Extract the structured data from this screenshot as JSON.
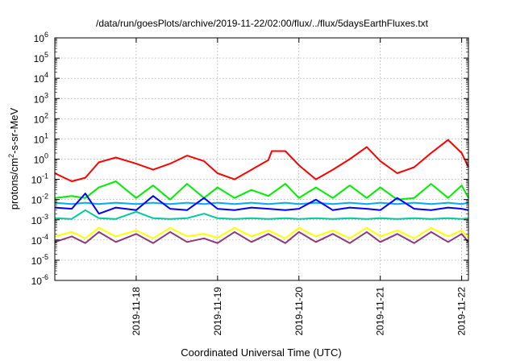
{
  "chart_data": {
    "type": "line",
    "title": "/data/run/goesPlots/archive/2019-11-22/02:00/flux/../flux/5daysEarthFluxes.txt",
    "xlabel": "Coordinated Universal Time (UTC)",
    "ylabel": {
      "base": "protons/cm",
      "sup": "2",
      "rest": "-s-sr-MeV"
    },
    "yscale": "log",
    "ylim": [
      1e-06,
      1000000.0
    ],
    "xlim": [
      "2019-11-17 00:00",
      "2019-11-22 02:00"
    ],
    "grid": true,
    "x_ticks": [
      "2019-11-18",
      "2019-11-19",
      "2019-11-20",
      "2019-11-21",
      "2019-11-22"
    ],
    "y_ticks": [
      {
        "value": 1000000.0,
        "base": "10",
        "exp": "6"
      },
      {
        "value": 100000.0,
        "base": "10",
        "exp": "5"
      },
      {
        "value": 10000.0,
        "base": "10",
        "exp": "4"
      },
      {
        "value": 1000.0,
        "base": "10",
        "exp": "3"
      },
      {
        "value": 100.0,
        "base": "10",
        "exp": "2"
      },
      {
        "value": 10.0,
        "base": "10",
        "exp": "1"
      },
      {
        "value": 1.0,
        "base": "10",
        "exp": "0"
      },
      {
        "value": 0.1,
        "base": "10",
        "exp": "-1"
      },
      {
        "value": 0.01,
        "base": "10",
        "exp": "-2"
      },
      {
        "value": 0.001,
        "base": "10",
        "exp": "-3"
      },
      {
        "value": 0.0001,
        "base": "10",
        "exp": "-4"
      },
      {
        "value": 1e-05,
        "base": "10",
        "exp": "-5"
      },
      {
        "value": 1e-06,
        "base": "10",
        "exp": "-6"
      }
    ],
    "series": [
      {
        "color": "#ff0000",
        "x": [
          "2019-11-17 00:00",
          "2019-11-17 05:00",
          "2019-11-17 09:00",
          "2019-11-17 13:00",
          "2019-11-17 18:00",
          "2019-11-18 00:00",
          "2019-11-18 05:00",
          "2019-11-18 10:00",
          "2019-11-18 15:00",
          "2019-11-18 20:00",
          "2019-11-19 00:00",
          "2019-11-19 05:00",
          "2019-11-19 10:00",
          "2019-11-19 15:00",
          "2019-11-19 16:00",
          "2019-11-19 20:00",
          "2019-11-20 00:00",
          "2019-11-20 05:00",
          "2019-11-20 10:00",
          "2019-11-20 15:00",
          "2019-11-20 20:00",
          "2019-11-21 00:00",
          "2019-11-21 05:00",
          "2019-11-21 10:00",
          "2019-11-21 15:00",
          "2019-11-21 20:00",
          "2019-11-22 00:00",
          "2019-11-22 02:00"
        ],
        "values": [
          0.2,
          0.08,
          0.12,
          0.7,
          1.2,
          0.6,
          0.3,
          0.6,
          1.5,
          0.8,
          0.2,
          0.1,
          0.3,
          0.9,
          2.5,
          2.5,
          0.5,
          0.1,
          0.3,
          1.0,
          4.0,
          0.8,
          0.2,
          0.4,
          2.0,
          9.0,
          2.0,
          0.4
        ]
      },
      {
        "color": "#00ee00",
        "x": [
          "2019-11-17 00:00",
          "2019-11-17 05:00",
          "2019-11-17 09:00",
          "2019-11-17 13:00",
          "2019-11-17 18:00",
          "2019-11-18 00:00",
          "2019-11-18 05:00",
          "2019-11-18 10:00",
          "2019-11-18 15:00",
          "2019-11-18 20:00",
          "2019-11-19 00:00",
          "2019-11-19 05:00",
          "2019-11-19 10:00",
          "2019-11-19 15:00",
          "2019-11-19 20:00",
          "2019-11-20 00:00",
          "2019-11-20 05:00",
          "2019-11-20 10:00",
          "2019-11-20 15:00",
          "2019-11-20 20:00",
          "2019-11-21 00:00",
          "2019-11-21 05:00",
          "2019-11-21 10:00",
          "2019-11-21 15:00",
          "2019-11-21 20:00",
          "2019-11-22 00:00",
          "2019-11-22 02:00"
        ],
        "values": [
          0.012,
          0.015,
          0.012,
          0.04,
          0.08,
          0.012,
          0.05,
          0.01,
          0.06,
          0.012,
          0.04,
          0.012,
          0.03,
          0.015,
          0.06,
          0.012,
          0.04,
          0.012,
          0.05,
          0.012,
          0.04,
          0.01,
          0.012,
          0.06,
          0.012,
          0.05,
          0.012
        ]
      },
      {
        "color": "#00aaff",
        "x": [
          "2019-11-17 00:00",
          "2019-11-17 05:00",
          "2019-11-17 09:00",
          "2019-11-17 13:00",
          "2019-11-17 18:00",
          "2019-11-18 00:00",
          "2019-11-18 05:00",
          "2019-11-18 10:00",
          "2019-11-18 15:00",
          "2019-11-18 20:00",
          "2019-11-19 00:00",
          "2019-11-19 05:00",
          "2019-11-19 10:00",
          "2019-11-19 15:00",
          "2019-11-19 20:00",
          "2019-11-20 00:00",
          "2019-11-20 05:00",
          "2019-11-20 10:00",
          "2019-11-20 15:00",
          "2019-11-20 20:00",
          "2019-11-21 00:00",
          "2019-11-21 05:00",
          "2019-11-21 10:00",
          "2019-11-21 15:00",
          "2019-11-21 20:00",
          "2019-11-22 00:00",
          "2019-11-22 02:00"
        ],
        "values": [
          0.007,
          0.006,
          0.007,
          0.006,
          0.007,
          0.006,
          0.007,
          0.006,
          0.007,
          0.006,
          0.007,
          0.006,
          0.007,
          0.006,
          0.007,
          0.006,
          0.007,
          0.006,
          0.007,
          0.006,
          0.007,
          0.006,
          0.007,
          0.006,
          0.007,
          0.006,
          0.007
        ]
      },
      {
        "color": "#0000ff",
        "x": [
          "2019-11-17 00:00",
          "2019-11-17 05:00",
          "2019-11-17 09:00",
          "2019-11-17 13:00",
          "2019-11-17 18:00",
          "2019-11-18 00:00",
          "2019-11-18 05:00",
          "2019-11-18 10:00",
          "2019-11-18 15:00",
          "2019-11-18 20:00",
          "2019-11-19 00:00",
          "2019-11-19 05:00",
          "2019-11-19 10:00",
          "2019-11-19 15:00",
          "2019-11-19 20:00",
          "2019-11-20 00:00",
          "2019-11-20 05:00",
          "2019-11-20 10:00",
          "2019-11-20 15:00",
          "2019-11-20 20:00",
          "2019-11-21 00:00",
          "2019-11-21 05:00",
          "2019-11-21 10:00",
          "2019-11-21 15:00",
          "2019-11-21 20:00",
          "2019-11-22 00:00",
          "2019-11-22 02:00"
        ],
        "values": [
          0.004,
          0.0035,
          0.02,
          0.002,
          0.004,
          0.003,
          0.015,
          0.0035,
          0.003,
          0.012,
          0.0035,
          0.003,
          0.004,
          0.0035,
          0.003,
          0.0035,
          0.01,
          0.003,
          0.004,
          0.0035,
          0.003,
          0.012,
          0.0035,
          0.003,
          0.004,
          0.0035,
          0.003
        ]
      },
      {
        "color": "#00c8a0",
        "x": [
          "2019-11-17 00:00",
          "2019-11-17 05:00",
          "2019-11-17 09:00",
          "2019-11-17 13:00",
          "2019-11-17 18:00",
          "2019-11-18 00:00",
          "2019-11-18 05:00",
          "2019-11-18 10:00",
          "2019-11-18 15:00",
          "2019-11-18 20:00",
          "2019-11-19 00:00",
          "2019-11-19 05:00",
          "2019-11-19 10:00",
          "2019-11-19 15:00",
          "2019-11-19 20:00",
          "2019-11-20 00:00",
          "2019-11-20 05:00",
          "2019-11-20 10:00",
          "2019-11-20 15:00",
          "2019-11-20 20:00",
          "2019-11-21 00:00",
          "2019-11-21 05:00",
          "2019-11-21 10:00",
          "2019-11-21 15:00",
          "2019-11-21 20:00",
          "2019-11-22 00:00",
          "2019-11-22 02:00"
        ],
        "values": [
          0.0012,
          0.0011,
          0.003,
          0.0012,
          0.0011,
          0.0025,
          0.0012,
          0.0011,
          0.0012,
          0.002,
          0.0012,
          0.0011,
          0.0012,
          0.0011,
          0.0012,
          0.0011,
          0.0012,
          0.0011,
          0.0012,
          0.0011,
          0.0012,
          0.0011,
          0.0012,
          0.0011,
          0.0012,
          0.0011,
          0.0012
        ]
      },
      {
        "color": "#ffff00",
        "x": [
          "2019-11-17 00:00",
          "2019-11-17 05:00",
          "2019-11-17 09:00",
          "2019-11-17 13:00",
          "2019-11-17 18:00",
          "2019-11-18 00:00",
          "2019-11-18 05:00",
          "2019-11-18 10:00",
          "2019-11-18 15:00",
          "2019-11-18 20:00",
          "2019-11-19 00:00",
          "2019-11-19 05:00",
          "2019-11-19 10:00",
          "2019-11-19 15:00",
          "2019-11-19 20:00",
          "2019-11-20 00:00",
          "2019-11-20 05:00",
          "2019-11-20 10:00",
          "2019-11-20 15:00",
          "2019-11-20 20:00",
          "2019-11-21 00:00",
          "2019-11-21 05:00",
          "2019-11-21 10:00",
          "2019-11-21 15:00",
          "2019-11-21 20:00",
          "2019-11-22 00:00",
          "2019-11-22 02:00"
        ],
        "values": [
          0.00015,
          0.00025,
          0.00012,
          0.0004,
          0.00015,
          0.0003,
          0.00012,
          0.0004,
          0.00015,
          0.0002,
          0.00013,
          0.0004,
          0.00015,
          0.0003,
          0.00012,
          0.0004,
          0.00015,
          0.0003,
          0.00012,
          0.0004,
          0.00015,
          0.0003,
          0.00012,
          0.0004,
          0.00015,
          0.0003,
          0.00013
        ]
      },
      {
        "color": "#8b3a7a",
        "x": [
          "2019-11-17 00:00",
          "2019-11-17 05:00",
          "2019-11-17 09:00",
          "2019-11-17 13:00",
          "2019-11-17 18:00",
          "2019-11-18 00:00",
          "2019-11-18 05:00",
          "2019-11-18 10:00",
          "2019-11-18 15:00",
          "2019-11-18 20:00",
          "2019-11-19 00:00",
          "2019-11-19 05:00",
          "2019-11-19 10:00",
          "2019-11-19 15:00",
          "2019-11-19 20:00",
          "2019-11-20 00:00",
          "2019-11-20 05:00",
          "2019-11-20 10:00",
          "2019-11-20 15:00",
          "2019-11-20 20:00",
          "2019-11-21 00:00",
          "2019-11-21 05:00",
          "2019-11-21 10:00",
          "2019-11-21 15:00",
          "2019-11-21 20:00",
          "2019-11-22 00:00",
          "2019-11-22 02:00"
        ],
        "values": [
          8e-05,
          0.00015,
          7e-05,
          0.00025,
          8e-05,
          0.0002,
          7e-05,
          0.00025,
          8e-05,
          0.00012,
          7e-05,
          0.00025,
          8e-05,
          0.0002,
          7e-05,
          0.00025,
          8e-05,
          0.0002,
          7e-05,
          0.00025,
          8e-05,
          0.0002,
          7e-05,
          0.00025,
          8e-05,
          0.0002,
          8e-05
        ]
      }
    ]
  }
}
